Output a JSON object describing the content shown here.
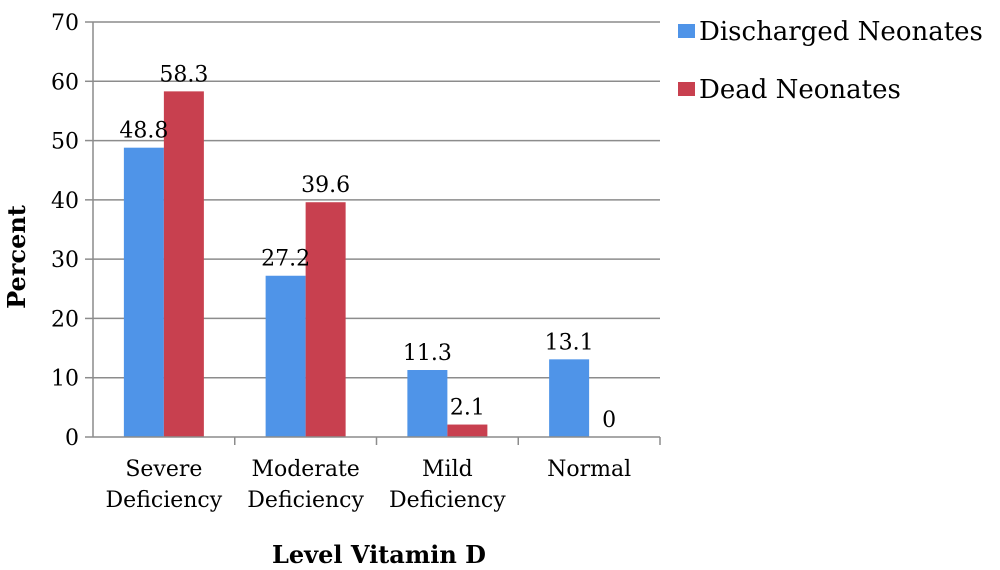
{
  "chart_data": {
    "type": "bar",
    "categories": [
      [
        "Severe",
        "Deficiency"
      ],
      [
        "Moderate",
        "Deficiency"
      ],
      [
        "Mild",
        "Deficiency"
      ],
      [
        "Normal"
      ]
    ],
    "series": [
      {
        "name": "Discharged Neonates",
        "values": [
          48.8,
          27.2,
          11.3,
          13.1
        ],
        "color": "#4f94e8"
      },
      {
        "name": "Dead Neonates",
        "values": [
          58.3,
          39.6,
          2.1,
          0
        ],
        "color": "#c8404f"
      }
    ],
    "xlabel": "Level Vitamin D",
    "ylabel": "Percent",
    "ylim": [
      0,
      70
    ],
    "yticks": [
      0,
      10,
      20,
      30,
      40,
      50,
      60,
      70
    ],
    "grid": true,
    "legend_position": "top-right"
  }
}
